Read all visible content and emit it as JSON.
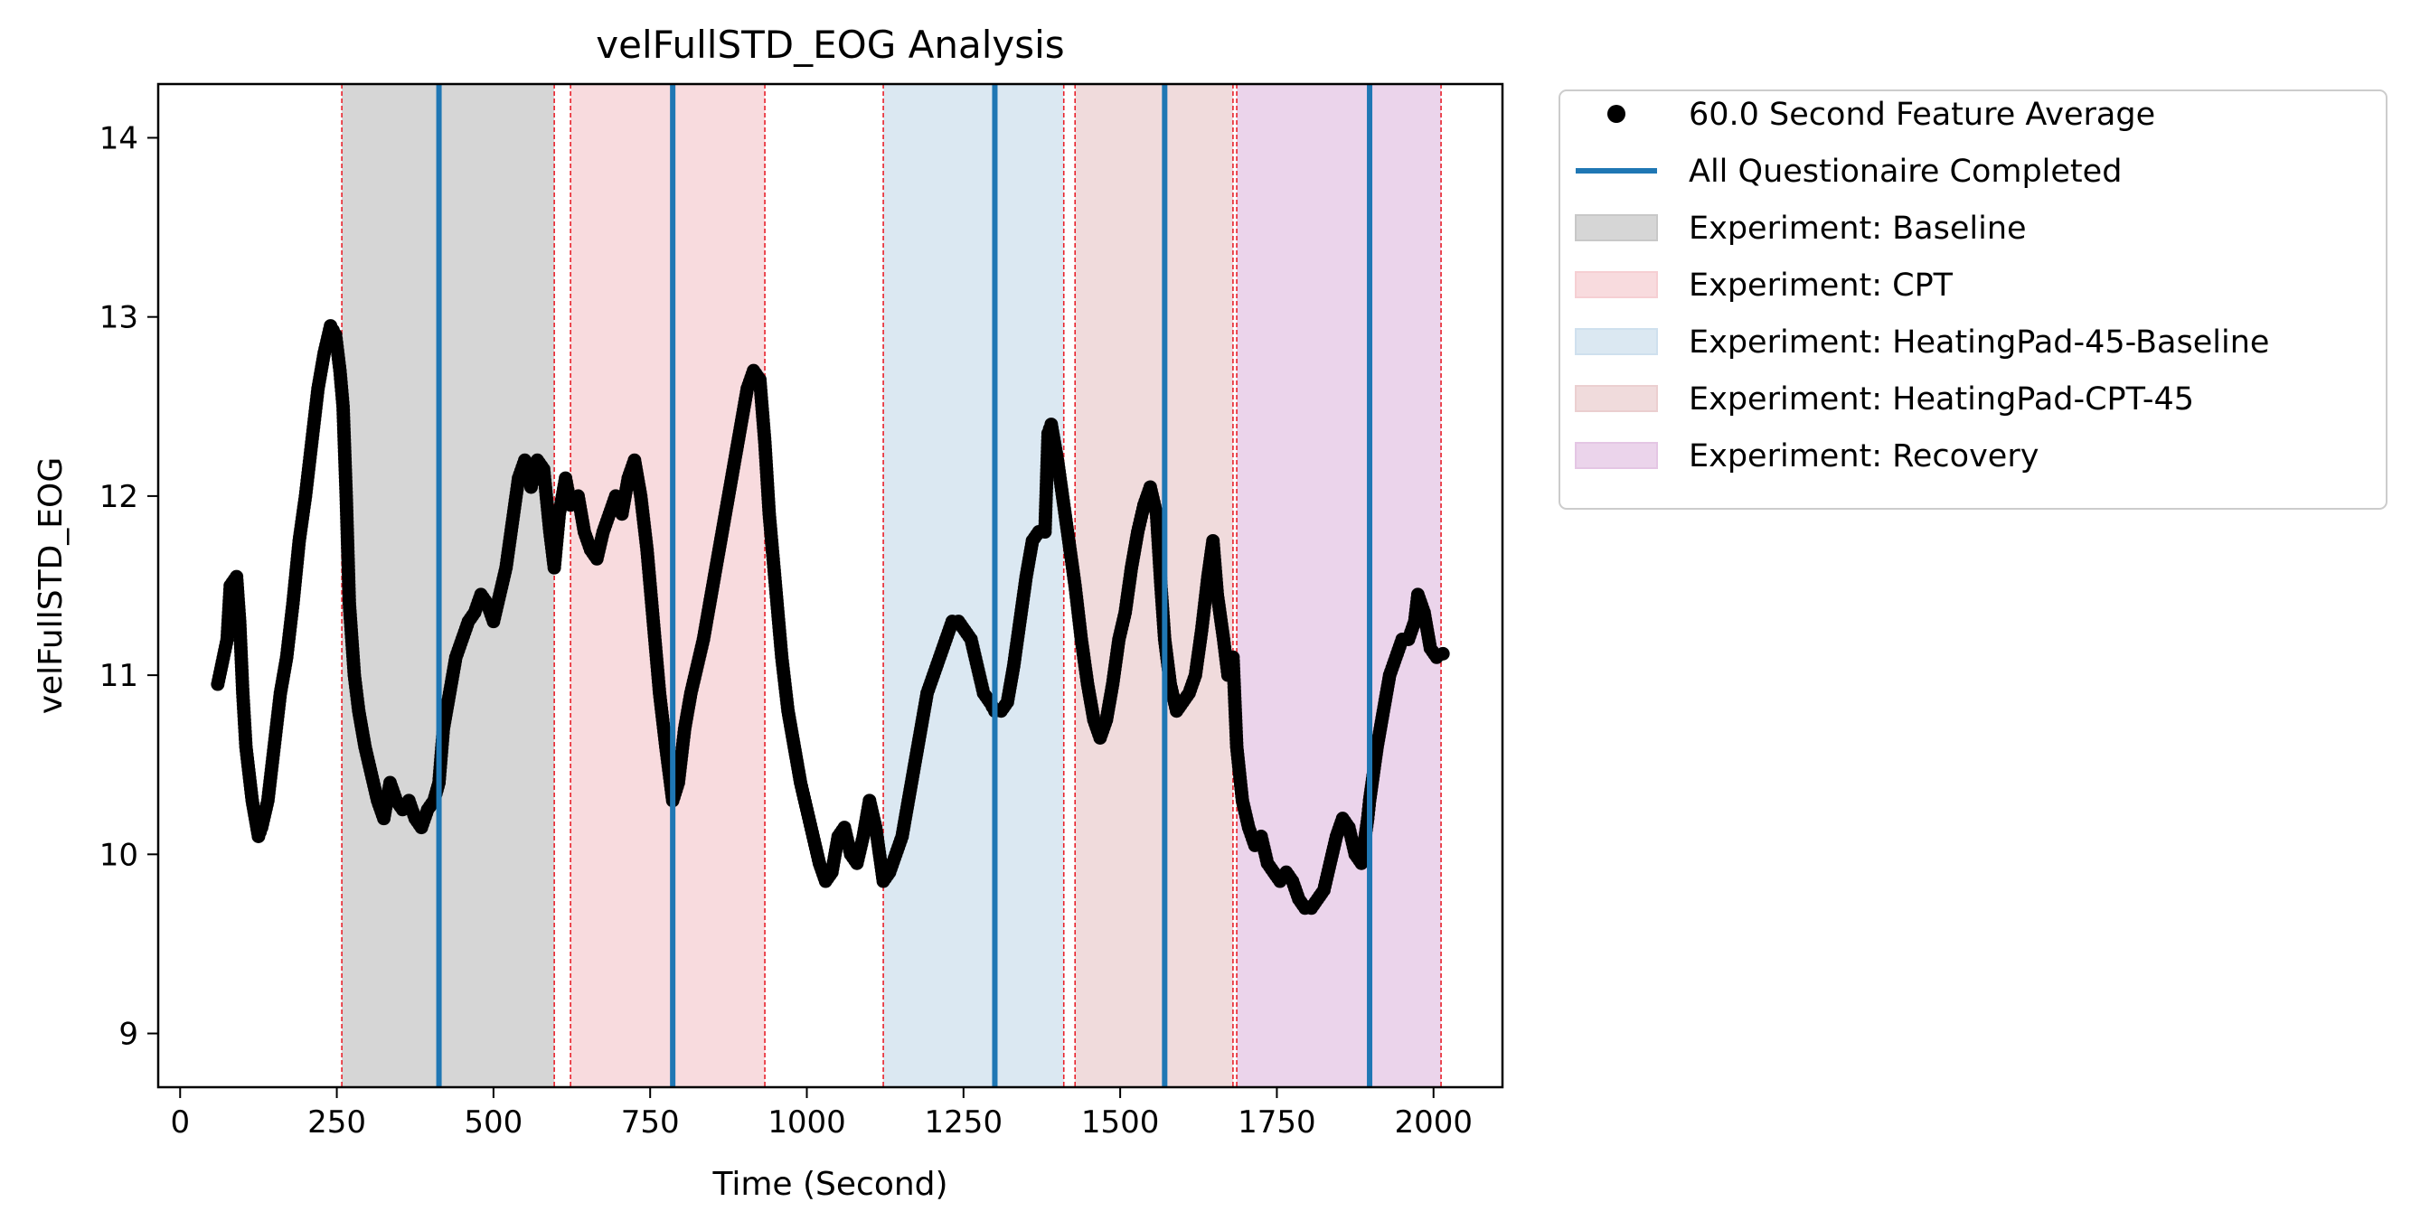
{
  "chart_data": {
    "type": "scatter",
    "title": "velFullSTD_EOG Analysis",
    "xlabel": "Time (Second)",
    "ylabel": "velFullSTD_EOG",
    "xlim": [
      -35,
      2110
    ],
    "ylim": [
      8.7,
      14.3
    ],
    "xticks": [
      0,
      250,
      500,
      750,
      1000,
      1250,
      1500,
      1750,
      2000
    ],
    "yticks": [
      9,
      10,
      11,
      12,
      13,
      14
    ],
    "grid": false,
    "legend_position": "outside-right-top",
    "legend": [
      {
        "label": "60.0 Second Feature Average",
        "kind": "dot",
        "color": "#000000"
      },
      {
        "label": "All Questionaire Completed",
        "kind": "line",
        "color": "#1f77b4"
      },
      {
        "label": "Experiment: Baseline",
        "kind": "patch",
        "color": "#c8c8c8"
      },
      {
        "label": "Experiment: CPT",
        "kind": "patch",
        "color": "#f6cfd3"
      },
      {
        "label": "Experiment: HeatingPad-45-Baseline",
        "kind": "patch",
        "color": "#cfe0ee"
      },
      {
        "label": "Experiment: HeatingPad-CPT-45",
        "kind": "patch",
        "color": "#ebcfd0"
      },
      {
        "label": "Experiment: Recovery",
        "kind": "patch",
        "color": "#e4c6e4"
      }
    ],
    "regions": [
      {
        "name": "Experiment: Baseline",
        "x0": 258,
        "x1": 597,
        "color": "#c8c8c8"
      },
      {
        "name": "Experiment: CPT",
        "x0": 623,
        "x1": 933,
        "color": "#f6cfd3"
      },
      {
        "name": "Experiment: HeatingPad-45-Baseline",
        "x0": 1122,
        "x1": 1410,
        "color": "#cfe0ee"
      },
      {
        "name": "Experiment: HeatingPad-CPT-45",
        "x0": 1428,
        "x1": 1680,
        "color": "#ebcfd0"
      },
      {
        "name": "Experiment: Recovery",
        "x0": 1686,
        "x1": 2012,
        "color": "#e4c6e4"
      }
    ],
    "boundary_lines": [
      258,
      597,
      623,
      933,
      1122,
      1410,
      1428,
      1680,
      1686,
      2012
    ],
    "questionnaire_completed": [
      413,
      786,
      1300,
      1571,
      1898
    ],
    "series": [
      {
        "name": "60.0 Second Feature Average",
        "color": "#000000",
        "points": [
          [
            60,
            10.95
          ],
          [
            75,
            11.2
          ],
          [
            80,
            11.5
          ],
          [
            90,
            11.55
          ],
          [
            95,
            11.3
          ],
          [
            100,
            10.9
          ],
          [
            105,
            10.6
          ],
          [
            115,
            10.3
          ],
          [
            125,
            10.1
          ],
          [
            130,
            10.15
          ],
          [
            140,
            10.3
          ],
          [
            150,
            10.6
          ],
          [
            160,
            10.9
          ],
          [
            170,
            11.1
          ],
          [
            180,
            11.4
          ],
          [
            190,
            11.75
          ],
          [
            200,
            12.0
          ],
          [
            210,
            12.3
          ],
          [
            220,
            12.6
          ],
          [
            230,
            12.8
          ],
          [
            240,
            12.95
          ],
          [
            248,
            12.9
          ],
          [
            255,
            12.7
          ],
          [
            260,
            12.5
          ],
          [
            265,
            12.0
          ],
          [
            270,
            11.4
          ],
          [
            278,
            11.0
          ],
          [
            285,
            10.8
          ],
          [
            295,
            10.6
          ],
          [
            305,
            10.45
          ],
          [
            315,
            10.3
          ],
          [
            325,
            10.2
          ],
          [
            335,
            10.4
          ],
          [
            345,
            10.3
          ],
          [
            355,
            10.25
          ],
          [
            365,
            10.3
          ],
          [
            375,
            10.2
          ],
          [
            385,
            10.15
          ],
          [
            395,
            10.25
          ],
          [
            405,
            10.3
          ],
          [
            413,
            10.4
          ],
          [
            420,
            10.7
          ],
          [
            430,
            10.9
          ],
          [
            440,
            11.1
          ],
          [
            450,
            11.2
          ],
          [
            460,
            11.3
          ],
          [
            470,
            11.35
          ],
          [
            480,
            11.45
          ],
          [
            490,
            11.4
          ],
          [
            500,
            11.3
          ],
          [
            510,
            11.45
          ],
          [
            520,
            11.6
          ],
          [
            530,
            11.85
          ],
          [
            540,
            12.1
          ],
          [
            550,
            12.2
          ],
          [
            560,
            12.05
          ],
          [
            570,
            12.2
          ],
          [
            580,
            12.15
          ],
          [
            590,
            11.8
          ],
          [
            597,
            11.6
          ],
          [
            605,
            11.9
          ],
          [
            615,
            12.1
          ],
          [
            623,
            11.95
          ],
          [
            635,
            12.0
          ],
          [
            645,
            11.8
          ],
          [
            655,
            11.7
          ],
          [
            665,
            11.65
          ],
          [
            675,
            11.8
          ],
          [
            685,
            11.9
          ],
          [
            695,
            12.0
          ],
          [
            705,
            11.9
          ],
          [
            715,
            12.1
          ],
          [
            725,
            12.2
          ],
          [
            735,
            12.0
          ],
          [
            745,
            11.7
          ],
          [
            755,
            11.3
          ],
          [
            765,
            10.9
          ],
          [
            775,
            10.6
          ],
          [
            786,
            10.3
          ],
          [
            795,
            10.4
          ],
          [
            805,
            10.7
          ],
          [
            815,
            10.9
          ],
          [
            825,
            11.05
          ],
          [
            835,
            11.2
          ],
          [
            845,
            11.4
          ],
          [
            855,
            11.6
          ],
          [
            865,
            11.8
          ],
          [
            875,
            12.0
          ],
          [
            885,
            12.2
          ],
          [
            895,
            12.4
          ],
          [
            905,
            12.6
          ],
          [
            915,
            12.7
          ],
          [
            925,
            12.65
          ],
          [
            933,
            12.3
          ],
          [
            940,
            11.9
          ],
          [
            950,
            11.5
          ],
          [
            960,
            11.1
          ],
          [
            970,
            10.8
          ],
          [
            980,
            10.6
          ],
          [
            990,
            10.4
          ],
          [
            1000,
            10.25
          ],
          [
            1010,
            10.1
          ],
          [
            1020,
            9.95
          ],
          [
            1030,
            9.85
          ],
          [
            1040,
            9.9
          ],
          [
            1050,
            10.1
          ],
          [
            1060,
            10.15
          ],
          [
            1070,
            10.0
          ],
          [
            1080,
            9.95
          ],
          [
            1090,
            10.1
          ],
          [
            1100,
            10.3
          ],
          [
            1110,
            10.15
          ],
          [
            1122,
            9.85
          ],
          [
            1132,
            9.9
          ],
          [
            1142,
            10.0
          ],
          [
            1152,
            10.1
          ],
          [
            1162,
            10.3
          ],
          [
            1172,
            10.5
          ],
          [
            1182,
            10.7
          ],
          [
            1192,
            10.9
          ],
          [
            1202,
            11.0
          ],
          [
            1212,
            11.1
          ],
          [
            1222,
            11.2
          ],
          [
            1232,
            11.3
          ],
          [
            1242,
            11.3
          ],
          [
            1252,
            11.25
          ],
          [
            1262,
            11.2
          ],
          [
            1272,
            11.05
          ],
          [
            1282,
            10.9
          ],
          [
            1292,
            10.85
          ],
          [
            1300,
            10.8
          ],
          [
            1310,
            10.8
          ],
          [
            1320,
            10.85
          ],
          [
            1330,
            11.05
          ],
          [
            1340,
            11.3
          ],
          [
            1350,
            11.55
          ],
          [
            1360,
            11.75
          ],
          [
            1370,
            11.8
          ],
          [
            1380,
            11.8
          ],
          [
            1385,
            12.35
          ],
          [
            1390,
            12.4
          ],
          [
            1400,
            12.2
          ],
          [
            1410,
            11.95
          ],
          [
            1420,
            11.7
          ],
          [
            1428,
            11.5
          ],
          [
            1438,
            11.2
          ],
          [
            1448,
            10.95
          ],
          [
            1458,
            10.75
          ],
          [
            1468,
            10.65
          ],
          [
            1478,
            10.75
          ],
          [
            1488,
            10.95
          ],
          [
            1498,
            11.2
          ],
          [
            1508,
            11.35
          ],
          [
            1518,
            11.6
          ],
          [
            1528,
            11.8
          ],
          [
            1538,
            11.95
          ],
          [
            1548,
            12.05
          ],
          [
            1558,
            11.9
          ],
          [
            1565,
            11.5
          ],
          [
            1571,
            11.2
          ],
          [
            1580,
            10.95
          ],
          [
            1590,
            10.8
          ],
          [
            1600,
            10.85
          ],
          [
            1610,
            10.9
          ],
          [
            1620,
            11.0
          ],
          [
            1630,
            11.25
          ],
          [
            1640,
            11.55
          ],
          [
            1648,
            11.75
          ],
          [
            1655,
            11.45
          ],
          [
            1665,
            11.2
          ],
          [
            1672,
            11.0
          ],
          [
            1680,
            11.1
          ],
          [
            1686,
            10.6
          ],
          [
            1695,
            10.3
          ],
          [
            1705,
            10.15
          ],
          [
            1715,
            10.05
          ],
          [
            1725,
            10.1
          ],
          [
            1735,
            9.95
          ],
          [
            1745,
            9.9
          ],
          [
            1755,
            9.85
          ],
          [
            1765,
            9.9
          ],
          [
            1775,
            9.85
          ],
          [
            1785,
            9.75
          ],
          [
            1795,
            9.7
          ],
          [
            1805,
            9.7
          ],
          [
            1815,
            9.75
          ],
          [
            1825,
            9.8
          ],
          [
            1835,
            9.95
          ],
          [
            1845,
            10.1
          ],
          [
            1855,
            10.2
          ],
          [
            1865,
            10.15
          ],
          [
            1875,
            10.0
          ],
          [
            1885,
            9.95
          ],
          [
            1895,
            10.2
          ],
          [
            1898,
            10.3
          ],
          [
            1910,
            10.6
          ],
          [
            1920,
            10.8
          ],
          [
            1930,
            11.0
          ],
          [
            1940,
            11.1
          ],
          [
            1950,
            11.2
          ],
          [
            1960,
            11.2
          ],
          [
            1970,
            11.3
          ],
          [
            1975,
            11.45
          ],
          [
            1985,
            11.35
          ],
          [
            1995,
            11.15
          ],
          [
            2005,
            11.1
          ],
          [
            2015,
            11.12
          ]
        ]
      }
    ]
  }
}
